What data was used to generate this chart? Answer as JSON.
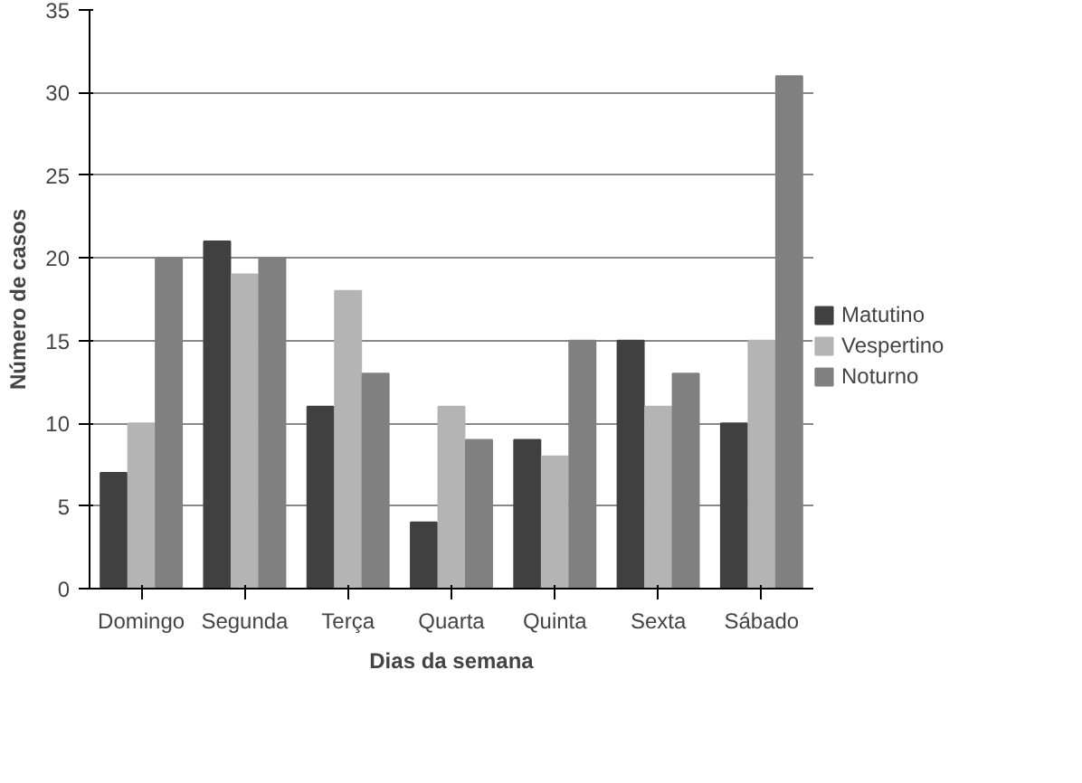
{
  "chart_data": {
    "type": "bar",
    "xlabel": "Dias da semana",
    "ylabel": "Número de casos",
    "categories": [
      "Domingo",
      "Segunda",
      "Terça",
      "Quarta",
      "Quinta",
      "Sexta",
      "Sábado"
    ],
    "series": [
      {
        "name": "Matutino",
        "color": "#404040",
        "values": [
          7,
          21,
          11,
          4,
          9,
          15,
          10
        ]
      },
      {
        "name": "Vespertino",
        "color": "#b4b4b4",
        "values": [
          10,
          19,
          18,
          11,
          8,
          11,
          15
        ]
      },
      {
        "name": "Noturno",
        "color": "#808080",
        "values": [
          20,
          20,
          13,
          9,
          15,
          13,
          31
        ]
      }
    ],
    "ylim": [
      0,
      35
    ],
    "yticks": [
      0,
      5,
      10,
      15,
      20,
      25,
      30,
      35
    ],
    "grid": "y",
    "legend": "right"
  }
}
